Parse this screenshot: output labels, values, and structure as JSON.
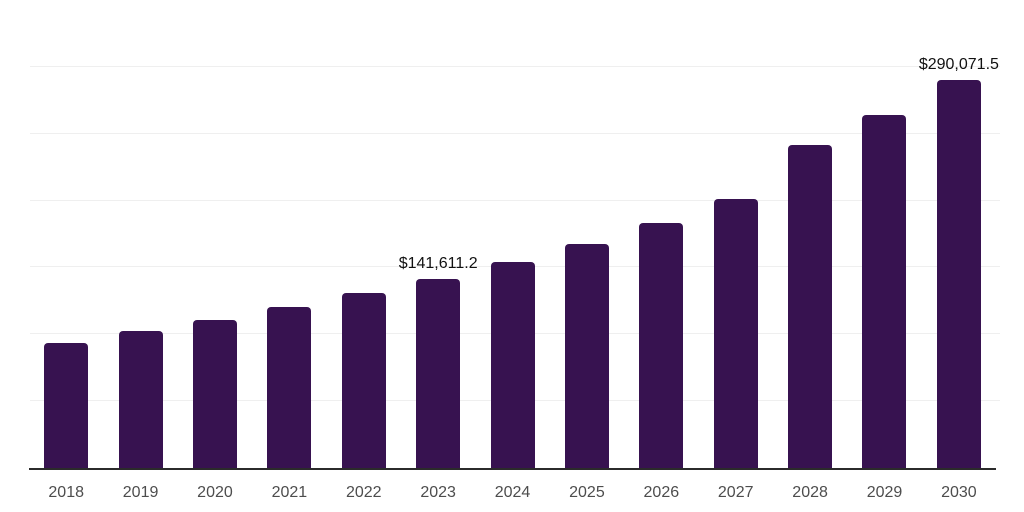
{
  "chart_data": {
    "type": "bar",
    "title": "",
    "xlabel": "",
    "ylabel": "",
    "categories": [
      "2018",
      "2019",
      "2020",
      "2021",
      "2022",
      "2023",
      "2024",
      "2025",
      "2026",
      "2027",
      "2028",
      "2029",
      "2030"
    ],
    "values": [
      93500,
      102400,
      110700,
      120400,
      130900,
      141611.2,
      154100,
      167500,
      183200,
      201200,
      241600,
      264000,
      290071.5
    ],
    "ylim": [
      0,
      350000
    ],
    "gridline_step": 50000,
    "grid": "horizontal-only",
    "legend": "none",
    "y_axis_tick_labels_visible": false,
    "data_labels": [
      {
        "category": "2023",
        "index": 5,
        "text": "$141,611.2"
      },
      {
        "category": "2030",
        "index": 12,
        "text": "$290,071.5"
      }
    ]
  },
  "colors": {
    "bar_fill": "#371250",
    "axis_line": "#2b2b2b",
    "gridline": "#efefef",
    "data_label_text": "#111111",
    "x_tick_text": "#4d4d4d",
    "background": "#ffffff"
  }
}
